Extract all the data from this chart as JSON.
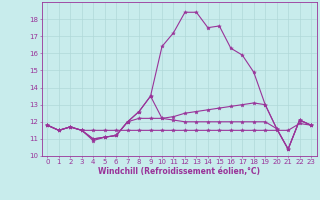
{
  "xlabel": "Windchill (Refroidissement éolien,°C)",
  "xlim": [
    -0.5,
    23.5
  ],
  "ylim": [
    10,
    19
  ],
  "yticks": [
    10,
    11,
    12,
    13,
    14,
    15,
    16,
    17,
    18
  ],
  "xticks": [
    0,
    1,
    2,
    3,
    4,
    5,
    6,
    7,
    8,
    9,
    10,
    11,
    12,
    13,
    14,
    15,
    16,
    17,
    18,
    19,
    20,
    21,
    22,
    23
  ],
  "background_color": "#c8ecec",
  "grid_color": "#b0d8d8",
  "line_color": "#993399",
  "tick_fontsize": 5.0,
  "xlabel_fontsize": 5.5,
  "lines": [
    [
      11.8,
      11.5,
      11.7,
      11.5,
      10.9,
      11.1,
      11.2,
      12.0,
      12.6,
      13.5,
      12.2,
      12.1,
      12.0,
      12.0,
      12.0,
      12.0,
      12.0,
      12.0,
      12.0,
      12.0,
      11.6,
      10.4,
      12.1,
      11.8
    ],
    [
      11.8,
      11.5,
      11.7,
      11.5,
      11.5,
      11.5,
      11.5,
      11.5,
      11.5,
      11.5,
      11.5,
      11.5,
      11.5,
      11.5,
      11.5,
      11.5,
      11.5,
      11.5,
      11.5,
      11.5,
      11.5,
      11.5,
      11.9,
      11.8
    ],
    [
      11.8,
      11.5,
      11.7,
      11.5,
      11.0,
      11.1,
      11.2,
      12.0,
      12.2,
      12.2,
      12.2,
      12.3,
      12.5,
      12.6,
      12.7,
      12.8,
      12.9,
      13.0,
      13.1,
      13.0,
      11.6,
      10.4,
      12.1,
      11.8
    ],
    [
      11.8,
      11.5,
      11.7,
      11.5,
      11.0,
      11.1,
      11.2,
      12.0,
      12.6,
      13.5,
      16.4,
      17.2,
      18.4,
      18.4,
      17.5,
      17.6,
      16.3,
      15.9,
      14.9,
      13.0,
      11.6,
      10.4,
      12.1,
      11.8
    ]
  ]
}
